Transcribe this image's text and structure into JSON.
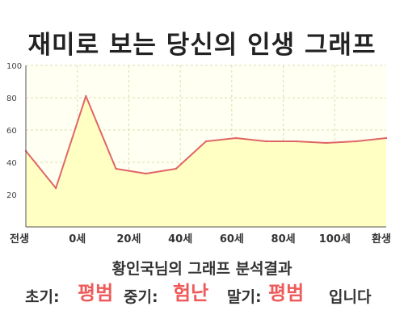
{
  "title": "재미로 보는 당신의 인생 그래프",
  "chart_data": {
    "type": "area",
    "x_tick_labels": [
      "전생",
      "0세",
      "20세",
      "40세",
      "60세",
      "80세",
      "100세",
      "환생"
    ],
    "y_ticks": [
      100,
      80,
      60,
      40,
      20
    ],
    "ylim": [
      0,
      100
    ],
    "grid": true,
    "fill_color": "#ffffc4",
    "line_color": "#e06666",
    "series": [
      {
        "values": [
          47,
          24,
          81,
          36,
          33,
          36,
          53,
          55,
          53,
          53,
          52,
          53,
          55
        ]
      }
    ]
  },
  "summary": {
    "heading": "황인국님의 그래프 분석결과",
    "early_label": "초기:",
    "early_value": "평범",
    "middle_label": "중기:",
    "middle_value": "험난",
    "late_label": "말기:",
    "late_value": "평범",
    "ending": "입니다"
  }
}
